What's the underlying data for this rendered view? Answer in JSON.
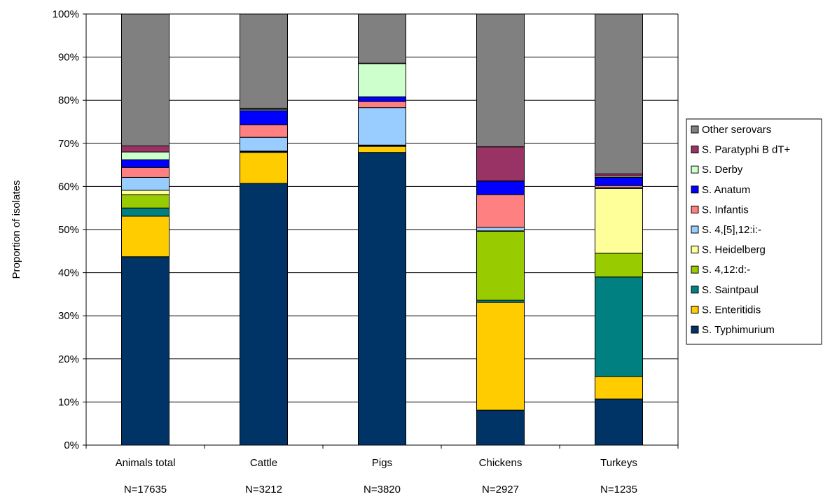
{
  "chart_data": {
    "type": "bar",
    "stacked": true,
    "percent": true,
    "ylabel": "Proportion of isolates",
    "xlabel": "",
    "ylim": [
      0,
      100
    ],
    "yticks": [
      "0%",
      "10%",
      "20%",
      "30%",
      "40%",
      "50%",
      "60%",
      "70%",
      "80%",
      "90%",
      "100%"
    ],
    "grid": true,
    "legend_position": "right",
    "categories": [
      "Animals total",
      "Cattle",
      "Pigs",
      "Chickens",
      "Turkeys"
    ],
    "category_n": [
      "N=17635",
      "N=3212",
      "N=3820",
      "N=2927",
      "N=1235"
    ],
    "series": [
      {
        "name": "S. Typhimurium",
        "color": "#003366",
        "values": [
          43.7,
          60.7,
          67.9,
          8.1,
          10.7
        ]
      },
      {
        "name": "S. Enteritidis",
        "color": "#FFCC00",
        "values": [
          9.4,
          7.2,
          1.4,
          25.0,
          5.2
        ]
      },
      {
        "name": "S. Saintpaul",
        "color": "#008080",
        "values": [
          1.9,
          0.1,
          0.1,
          0.5,
          23.1
        ]
      },
      {
        "name": "S. 4,12:d:-",
        "color": "#99CC00",
        "values": [
          3.1,
          0.1,
          0.1,
          16.0,
          5.5
        ]
      },
      {
        "name": "S. Heidelberg",
        "color": "#FFFF99",
        "values": [
          1.0,
          0.1,
          0.1,
          0.1,
          15.0
        ]
      },
      {
        "name": "S. 4,[5],12:i:-",
        "color": "#99CCFF",
        "values": [
          3.0,
          3.2,
          8.7,
          0.8,
          0.3
        ]
      },
      {
        "name": "S. Infantis",
        "color": "#FF8080",
        "values": [
          2.3,
          2.9,
          1.4,
          7.6,
          0.4
        ]
      },
      {
        "name": "S. Anatum",
        "color": "#0000FF",
        "values": [
          1.8,
          3.3,
          1.1,
          3.1,
          1.9
        ]
      },
      {
        "name": "S. Derby",
        "color": "#CCFFCC",
        "values": [
          1.8,
          0.3,
          7.7,
          0.1,
          0.3
        ]
      },
      {
        "name": "S. Paratyphi B dT+",
        "color": "#993366",
        "values": [
          1.4,
          0.2,
          0.1,
          7.9,
          0.5
        ]
      },
      {
        "name": "Other serovars",
        "color": "#808080",
        "values": [
          30.6,
          21.9,
          11.4,
          30.8,
          37.1
        ]
      }
    ]
  }
}
